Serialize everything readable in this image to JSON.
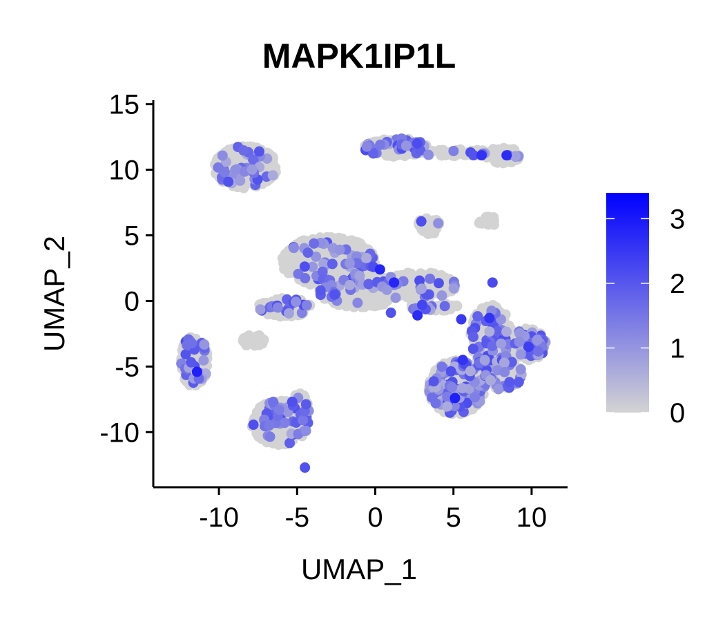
{
  "chart_data": {
    "type": "scatter",
    "title": "MAPK1IP1L",
    "xlabel": "UMAP_1",
    "ylabel": "UMAP_2",
    "xlim": [
      -14.2,
      12.3
    ],
    "ylim": [
      -14.2,
      15.3
    ],
    "xticks": [
      -10,
      -5,
      0,
      5,
      10
    ],
    "xtick_labels": [
      "-10",
      "-5",
      "0",
      "5",
      "10"
    ],
    "yticks": [
      -10,
      -5,
      0,
      5,
      10,
      15
    ],
    "ytick_labels": [
      "-10",
      "-5",
      "0",
      "5",
      "10",
      "15"
    ],
    "grid": false,
    "legend": {
      "type": "colorbar",
      "placement": "right",
      "min": 0,
      "max": 3.4,
      "ticks": [
        0,
        1,
        2,
        3
      ],
      "tick_labels": [
        "0",
        "1",
        "2",
        "3"
      ],
      "color_low": "#D3D3D3",
      "color_high": "#0000FF"
    },
    "clusters": [
      {
        "cx": -8.3,
        "cy": 10.2,
        "rx": 2.0,
        "ry": 1.6,
        "n": 320,
        "expr": 0.12
      },
      {
        "cx": 1.3,
        "cy": 11.7,
        "rx": 2.0,
        "ry": 0.7,
        "n": 180,
        "expr": 0.15
      },
      {
        "cx": 5.2,
        "cy": 11.3,
        "rx": 2.4,
        "ry": 0.25,
        "n": 50,
        "expr": 0.15
      },
      {
        "cx": 8.2,
        "cy": 11.1,
        "rx": 1.1,
        "ry": 0.6,
        "n": 70,
        "expr": 0.15
      },
      {
        "cx": 3.4,
        "cy": 5.7,
        "rx": 0.8,
        "ry": 0.6,
        "n": 60,
        "expr": 0.05
      },
      {
        "cx": 7.2,
        "cy": 6.1,
        "rx": 0.6,
        "ry": 0.4,
        "n": 18,
        "expr": 0.0
      },
      {
        "cx": -3.0,
        "cy": 3.0,
        "rx": 3.0,
        "ry": 1.9,
        "n": 480,
        "expr": 0.12
      },
      {
        "cx": -1.0,
        "cy": 0.8,
        "rx": 2.6,
        "ry": 1.3,
        "n": 320,
        "expr": 0.1
      },
      {
        "cx": -5.8,
        "cy": -0.5,
        "rx": 1.7,
        "ry": 0.7,
        "n": 120,
        "expr": 0.08
      },
      {
        "cx": 2.8,
        "cy": 1.2,
        "rx": 2.4,
        "ry": 1.0,
        "n": 180,
        "expr": 0.1
      },
      {
        "cx": 3.7,
        "cy": -0.4,
        "rx": 1.8,
        "ry": 0.35,
        "n": 50,
        "expr": 0.15
      },
      {
        "cx": -7.8,
        "cy": -3.0,
        "rx": 0.7,
        "ry": 0.5,
        "n": 30,
        "expr": 0.1
      },
      {
        "cx": -11.6,
        "cy": -4.6,
        "rx": 0.9,
        "ry": 1.9,
        "n": 140,
        "expr": 0.2
      },
      {
        "cx": -6.1,
        "cy": -9.3,
        "rx": 1.8,
        "ry": 1.7,
        "n": 300,
        "expr": 0.15
      },
      {
        "cx": -4.8,
        "cy": -8.3,
        "rx": 0.6,
        "ry": 1.3,
        "n": 60,
        "expr": 0.05
      },
      {
        "cx": 5.2,
        "cy": -6.6,
        "rx": 1.8,
        "ry": 2.1,
        "n": 400,
        "expr": 0.22
      },
      {
        "cx": 7.4,
        "cy": -2.7,
        "rx": 1.3,
        "ry": 2.4,
        "n": 260,
        "expr": 0.2
      },
      {
        "cx": 9.8,
        "cy": -3.3,
        "rx": 1.1,
        "ry": 1.2,
        "n": 140,
        "expr": 0.2
      },
      {
        "cx": 7.7,
        "cy": -5.6,
        "rx": 1.7,
        "ry": 1.2,
        "n": 160,
        "expr": 0.22
      }
    ],
    "highlight_points": [
      {
        "x": -4.5,
        "y": -12.7,
        "value": 2.1
      },
      {
        "x": 0.3,
        "y": 2.4,
        "value": 2.8
      },
      {
        "x": 1.2,
        "y": 1.4,
        "value": 2.8
      },
      {
        "x": 6.8,
        "y": 11.1,
        "value": 2.6
      },
      {
        "x": 8.4,
        "y": 11.1,
        "value": 2.7
      },
      {
        "x": -11.4,
        "y": -5.4,
        "value": 2.9
      },
      {
        "x": 5.6,
        "y": -4.5,
        "value": 2.6
      },
      {
        "x": 5.1,
        "y": -7.4,
        "value": 2.9
      },
      {
        "x": 2.7,
        "y": -1.1,
        "value": 2.7
      },
      {
        "x": 5.5,
        "y": -1.4,
        "value": 2.5
      },
      {
        "x": 7.3,
        "y": -1.3,
        "value": 2.6
      },
      {
        "x": 3.0,
        "y": -0.3,
        "value": 2.3
      },
      {
        "x": -3.5,
        "y": 0.8,
        "value": 2.0
      },
      {
        "x": 9.8,
        "y": -3.5,
        "value": 2.4
      },
      {
        "x": 7.5,
        "y": 1.4,
        "value": 2.2
      },
      {
        "x": 1.0,
        "y": -0.9,
        "value": 2.1
      }
    ]
  }
}
